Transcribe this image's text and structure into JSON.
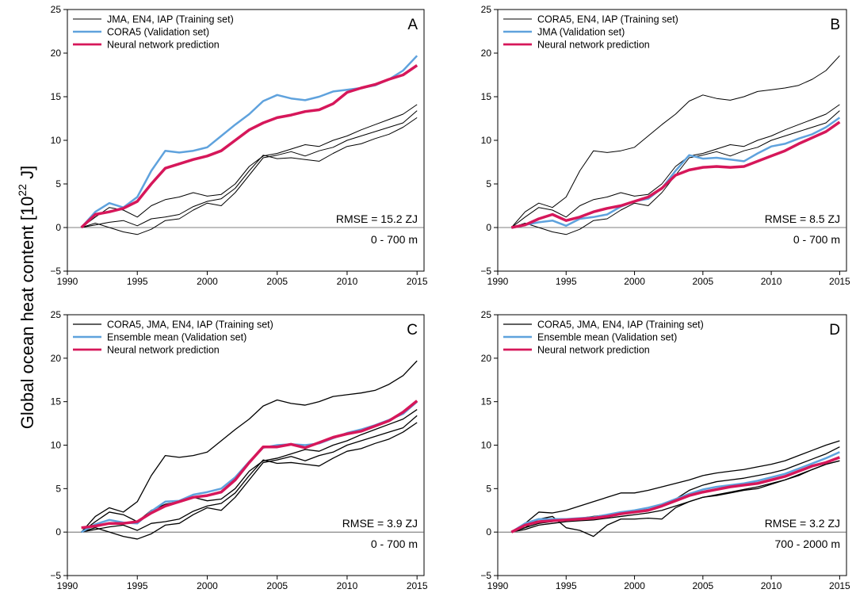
{
  "ylabel": [
    "Global ocean heat content [10",
    "22",
    " J]"
  ],
  "chart_data": [
    {
      "type": "line",
      "panel": "A",
      "annotations": [
        "RMSE = 15.2 ZJ",
        "0 - 700 m"
      ],
      "xlim": [
        1990,
        2015.5
      ],
      "xticks": [
        1990,
        1995,
        2000,
        2005,
        2010,
        2015
      ],
      "ylim": [
        -5,
        25
      ],
      "yticks": [
        {
          "value": -5,
          "label": "−5"
        },
        0,
        5,
        10,
        15,
        20,
        25
      ],
      "zero_line": true,
      "legend": "upper left",
      "x": [
        1991,
        1992,
        1993,
        1994,
        1995,
        1996,
        1997,
        1998,
        1999,
        2000,
        2001,
        2002,
        2003,
        2004,
        2005,
        2006,
        2007,
        2008,
        2009,
        2010,
        2011,
        2012,
        2013,
        2014,
        2015
      ],
      "series": [
        {
          "name": "JMA, EN4, IAP (Training set)",
          "color": "#000000",
          "linewidth": 1,
          "lines": [
            [
              0,
              0.3,
              0.6,
              0.8,
              0.2,
              1.0,
              1.2,
              1.5,
              2.4,
              3.0,
              3.3,
              4.5,
              6.5,
              8.3,
              7.9,
              8.0,
              7.8,
              7.6,
              8.5,
              9.3,
              9.6,
              10.2,
              10.7,
              11.5,
              12.6
            ],
            [
              0,
              1.2,
              2.3,
              2.0,
              1.2,
              2.5,
              3.2,
              3.5,
              4.0,
              3.6,
              3.8,
              5.0,
              7.0,
              8.2,
              8.5,
              9.0,
              9.5,
              9.3,
              10.0,
              10.5,
              11.2,
              11.8,
              12.4,
              13.0,
              14.1
            ],
            [
              0,
              0.5,
              0.0,
              -0.5,
              -0.8,
              -0.2,
              0.8,
              1.0,
              2.0,
              2.8,
              2.5,
              4.0,
              6.0,
              8.0,
              8.3,
              8.7,
              8.2,
              8.8,
              9.2,
              10.0,
              10.5,
              11.0,
              11.5,
              12.0,
              13.4
            ]
          ]
        },
        {
          "name": "CORA5 (Validation set)",
          "color": "#5fa2dd",
          "linewidth": 2.5,
          "values": [
            0,
            1.8,
            2.8,
            2.3,
            3.5,
            6.5,
            8.8,
            8.6,
            8.8,
            9.2,
            10.5,
            11.8,
            13.0,
            14.5,
            15.2,
            14.8,
            14.6,
            15.0,
            15.6,
            15.8,
            16.0,
            16.3,
            17.0,
            18.0,
            19.7
          ]
        },
        {
          "name": "Neural network prediction",
          "color": "#d6175a",
          "linewidth": 3.5,
          "values": [
            0,
            1.5,
            1.8,
            2.2,
            3.0,
            5.0,
            6.8,
            7.3,
            7.8,
            8.2,
            8.8,
            10.0,
            11.2,
            12.0,
            12.6,
            12.9,
            13.3,
            13.5,
            14.2,
            15.5,
            16.0,
            16.4,
            17.0,
            17.5,
            18.6
          ]
        }
      ]
    },
    {
      "type": "line",
      "panel": "B",
      "annotations": [
        "RMSE = 8.5 ZJ",
        "0 - 700 m"
      ],
      "xlim": [
        1990,
        2015.5
      ],
      "xticks": [
        1990,
        1995,
        2000,
        2005,
        2010,
        2015
      ],
      "ylim": [
        -5,
        25
      ],
      "yticks": [
        {
          "value": -5,
          "label": "−5"
        },
        0,
        5,
        10,
        15,
        20,
        25
      ],
      "zero_line": true,
      "legend": "upper left",
      "x": [
        1991,
        1992,
        1993,
        1994,
        1995,
        1996,
        1997,
        1998,
        1999,
        2000,
        2001,
        2002,
        2003,
        2004,
        2005,
        2006,
        2007,
        2008,
        2009,
        2010,
        2011,
        2012,
        2013,
        2014,
        2015
      ],
      "series": [
        {
          "name": "CORA5, EN4, IAP (Training set)",
          "color": "#000000",
          "linewidth": 1,
          "lines": [
            [
              0,
              1.8,
              2.8,
              2.3,
              3.5,
              6.5,
              8.8,
              8.6,
              8.8,
              9.2,
              10.5,
              11.8,
              13.0,
              14.5,
              15.2,
              14.8,
              14.6,
              15.0,
              15.6,
              15.8,
              16.0,
              16.3,
              17.0,
              18.0,
              19.7
            ],
            [
              0,
              1.2,
              2.3,
              2.0,
              1.2,
              2.5,
              3.2,
              3.5,
              4.0,
              3.6,
              3.8,
              5.0,
              7.0,
              8.2,
              8.5,
              9.0,
              9.5,
              9.3,
              10.0,
              10.5,
              11.2,
              11.8,
              12.4,
              13.0,
              14.1
            ],
            [
              0,
              0.5,
              0.0,
              -0.5,
              -0.8,
              -0.2,
              0.8,
              1.0,
              2.0,
              2.8,
              2.5,
              4.0,
              6.0,
              8.0,
              8.3,
              8.7,
              8.2,
              8.8,
              9.2,
              10.0,
              10.5,
              11.0,
              11.5,
              12.0,
              13.4
            ]
          ]
        },
        {
          "name": "JMA (Validation set)",
          "color": "#5fa2dd",
          "linewidth": 2.5,
          "values": [
            0,
            0.3,
            0.6,
            0.8,
            0.2,
            1.0,
            1.2,
            1.5,
            2.4,
            3.0,
            3.3,
            4.5,
            6.5,
            8.3,
            7.9,
            8.0,
            7.8,
            7.6,
            8.5,
            9.3,
            9.6,
            10.2,
            10.7,
            11.5,
            12.6
          ]
        },
        {
          "name": "Neural network prediction",
          "color": "#d6175a",
          "linewidth": 3.5,
          "values": [
            0,
            0.3,
            1.0,
            1.5,
            0.8,
            1.2,
            1.8,
            2.2,
            2.5,
            3.0,
            3.5,
            4.5,
            6.0,
            6.6,
            6.9,
            7.0,
            6.9,
            7.0,
            7.6,
            8.2,
            8.8,
            9.6,
            10.3,
            11.0,
            12.1
          ]
        }
      ]
    },
    {
      "type": "line",
      "panel": "C",
      "annotations": [
        "RMSE = 3.9 ZJ",
        "0 - 700 m"
      ],
      "xlim": [
        1990,
        2015.5
      ],
      "xticks": [
        1990,
        1995,
        2000,
        2005,
        2010,
        2015
      ],
      "ylim": [
        -5,
        25
      ],
      "yticks": [
        {
          "value": -5,
          "label": "−5"
        },
        0,
        5,
        10,
        15,
        20,
        25
      ],
      "zero_line": true,
      "legend": "upper left",
      "x": [
        1991,
        1992,
        1993,
        1994,
        1995,
        1996,
        1997,
        1998,
        1999,
        2000,
        2001,
        2002,
        2003,
        2004,
        2005,
        2006,
        2007,
        2008,
        2009,
        2010,
        2011,
        2012,
        2013,
        2014,
        2015
      ],
      "series": [
        {
          "name": "CORA5, JMA, EN4, IAP (Training set)",
          "color": "#000000",
          "linewidth": 1.3,
          "lines": [
            [
              0,
              1.8,
              2.8,
              2.3,
              3.5,
              6.5,
              8.8,
              8.6,
              8.8,
              9.2,
              10.5,
              11.8,
              13.0,
              14.5,
              15.2,
              14.8,
              14.6,
              15.0,
              15.6,
              15.8,
              16.0,
              16.3,
              17.0,
              18.0,
              19.7
            ],
            [
              0,
              0.3,
              0.6,
              0.8,
              0.2,
              1.0,
              1.2,
              1.5,
              2.4,
              3.0,
              3.3,
              4.5,
              6.5,
              8.3,
              7.9,
              8.0,
              7.8,
              7.6,
              8.5,
              9.3,
              9.6,
              10.2,
              10.7,
              11.5,
              12.6
            ],
            [
              0,
              1.2,
              2.3,
              2.0,
              1.2,
              2.5,
              3.2,
              3.5,
              4.0,
              3.6,
              3.8,
              5.0,
              7.0,
              8.2,
              8.5,
              9.0,
              9.5,
              9.3,
              10.0,
              10.5,
              11.2,
              11.8,
              12.4,
              13.0,
              14.1
            ],
            [
              0,
              0.5,
              0.0,
              -0.5,
              -0.8,
              -0.2,
              0.8,
              1.0,
              2.0,
              2.8,
              2.5,
              4.0,
              6.0,
              8.0,
              8.3,
              8.7,
              8.2,
              8.8,
              9.2,
              10.0,
              10.5,
              11.0,
              11.5,
              12.0,
              13.4
            ]
          ]
        },
        {
          "name": "Ensemble mean (Validation set)",
          "color": "#5fa2dd",
          "linewidth": 2.5,
          "values": [
            0,
            0.9,
            1.4,
            1.1,
            1.0,
            2.4,
            3.5,
            3.6,
            4.3,
            4.6,
            5.0,
            6.3,
            8.1,
            9.7,
            10.0,
            10.1,
            10.0,
            10.2,
            10.8,
            11.4,
            11.8,
            12.3,
            12.9,
            13.6,
            15.0
          ]
        },
        {
          "name": "Neural network prediction",
          "color": "#d6175a",
          "linewidth": 3.5,
          "values": [
            0.5,
            0.7,
            1.0,
            1.0,
            1.2,
            2.2,
            3.0,
            3.5,
            4.0,
            4.2,
            4.6,
            6.0,
            8.0,
            9.8,
            9.8,
            10.1,
            9.7,
            10.3,
            10.9,
            11.3,
            11.6,
            12.2,
            12.8,
            13.8,
            15.1
          ]
        }
      ]
    },
    {
      "type": "line",
      "panel": "D",
      "annotations": [
        "RMSE = 3.2 ZJ",
        "700 - 2000 m"
      ],
      "xlim": [
        1990,
        2015.5
      ],
      "xticks": [
        1990,
        1995,
        2000,
        2005,
        2010,
        2015
      ],
      "ylim": [
        -5,
        25
      ],
      "yticks": [
        {
          "value": -5,
          "label": "−5"
        },
        0,
        5,
        10,
        15,
        20,
        25
      ],
      "zero_line": true,
      "legend": "upper left",
      "x": [
        1991,
        1992,
        1993,
        1994,
        1995,
        1996,
        1997,
        1998,
        1999,
        2000,
        2001,
        2002,
        2003,
        2004,
        2005,
        2006,
        2007,
        2008,
        2009,
        2010,
        2011,
        2012,
        2013,
        2014,
        2015
      ],
      "series": [
        {
          "name": "CORA5, JMA, EN4, IAP (Training set)",
          "color": "#000000",
          "linewidth": 1.3,
          "lines": [
            [
              0,
              1.0,
              2.3,
              2.2,
              2.5,
              3.0,
              3.5,
              4.0,
              4.5,
              4.5,
              4.8,
              5.2,
              5.6,
              6.0,
              6.5,
              6.8,
              7.0,
              7.2,
              7.5,
              7.8,
              8.2,
              8.8,
              9.4,
              10.0,
              10.5
            ],
            [
              0,
              0.5,
              1.5,
              1.8,
              0.5,
              0.2,
              -0.5,
              0.8,
              1.5,
              1.5,
              1.6,
              1.5,
              2.8,
              3.5,
              4.0,
              4.2,
              4.5,
              4.8,
              5.0,
              5.5,
              6.0,
              6.5,
              7.2,
              7.8,
              8.2
            ],
            [
              0,
              0.5,
              1.0,
              1.2,
              1.4,
              1.6,
              1.8,
              2.0,
              2.2,
              2.4,
              2.6,
              3.0,
              3.8,
              4.8,
              5.4,
              5.8,
              6.0,
              6.2,
              6.5,
              6.8,
              7.2,
              7.8,
              8.4,
              9.0,
              9.8
            ],
            [
              0,
              0.3,
              0.8,
              1.0,
              1.2,
              1.3,
              1.4,
              1.6,
              1.8,
              2.0,
              2.2,
              2.5,
              3.0,
              3.5,
              4.0,
              4.3,
              4.6,
              4.9,
              5.2,
              5.6,
              6.0,
              6.6,
              7.2,
              7.8,
              8.2
            ]
          ]
        },
        {
          "name": "Ensemble mean (Validation set)",
          "color": "#5fa2dd",
          "linewidth": 2.5,
          "values": [
            0,
            1.0,
            1.5,
            1.5,
            1.5,
            1.6,
            1.7,
            2.0,
            2.3,
            2.5,
            2.8,
            3.2,
            3.8,
            4.4,
            4.9,
            5.2,
            5.4,
            5.6,
            5.9,
            6.3,
            6.7,
            7.3,
            7.9,
            8.5,
            9.2
          ]
        },
        {
          "name": "Neural network prediction",
          "color": "#d6175a",
          "linewidth": 3.5,
          "values": [
            0,
            0.8,
            1.2,
            1.3,
            1.4,
            1.5,
            1.6,
            1.8,
            2.1,
            2.3,
            2.5,
            3.0,
            3.6,
            4.2,
            4.6,
            4.9,
            5.2,
            5.4,
            5.6,
            6.0,
            6.4,
            7.0,
            7.6,
            8.0,
            8.6
          ]
        }
      ]
    }
  ]
}
